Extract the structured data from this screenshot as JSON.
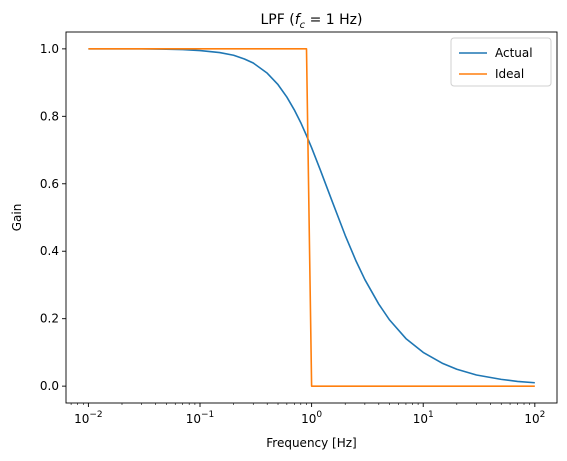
{
  "chart_data": {
    "type": "line",
    "title": "LPF (f_c = 1 Hz)",
    "title_parts": {
      "prefix": "LPF (",
      "var": "f",
      "sub": "c",
      "suffix": " = 1 Hz)"
    },
    "xlabel": "Frequency [Hz]",
    "ylabel": "Gain",
    "xscale": "log",
    "xlim": [
      0.0063,
      158
    ],
    "ylim": [
      -0.05,
      1.05
    ],
    "grid": false,
    "legend_position": "top-right",
    "xticks": [
      {
        "base": "10",
        "exp": "−2",
        "value": 0.01
      },
      {
        "base": "10",
        "exp": "−1",
        "value": 0.1
      },
      {
        "base": "10",
        "exp": "0",
        "value": 1
      },
      {
        "base": "10",
        "exp": "1",
        "value": 10
      },
      {
        "base": "10",
        "exp": "2",
        "value": 100
      }
    ],
    "yticks": [
      {
        "label": "0.0",
        "value": 0.0
      },
      {
        "label": "0.2",
        "value": 0.2
      },
      {
        "label": "0.4",
        "value": 0.4
      },
      {
        "label": "0.6",
        "value": 0.6
      },
      {
        "label": "0.8",
        "value": 0.8
      },
      {
        "label": "1.0",
        "value": 1.0
      }
    ],
    "series": [
      {
        "name": "Actual",
        "color": "#1f77b4",
        "x": [
          0.01,
          0.02,
          0.03,
          0.05,
          0.07,
          0.1,
          0.15,
          0.2,
          0.25,
          0.3,
          0.4,
          0.5,
          0.6,
          0.7,
          0.8,
          0.9,
          1.0,
          1.2,
          1.5,
          2.0,
          2.5,
          3.0,
          4.0,
          5.0,
          7.0,
          10.0,
          15.0,
          20.0,
          30.0,
          50.0,
          70.0,
          100.0
        ],
        "y": [
          1.0,
          1.0,
          1.0,
          0.999,
          0.998,
          0.995,
          0.989,
          0.981,
          0.97,
          0.958,
          0.928,
          0.894,
          0.857,
          0.819,
          0.781,
          0.743,
          0.707,
          0.64,
          0.555,
          0.447,
          0.371,
          0.316,
          0.243,
          0.196,
          0.141,
          0.1,
          0.067,
          0.05,
          0.033,
          0.02,
          0.014,
          0.01
        ]
      },
      {
        "name": "Ideal",
        "color": "#ff7f0e",
        "x": [
          0.01,
          0.9,
          1.0,
          100.0
        ],
        "y": [
          1.0,
          1.0,
          0.0,
          0.0
        ]
      }
    ]
  }
}
